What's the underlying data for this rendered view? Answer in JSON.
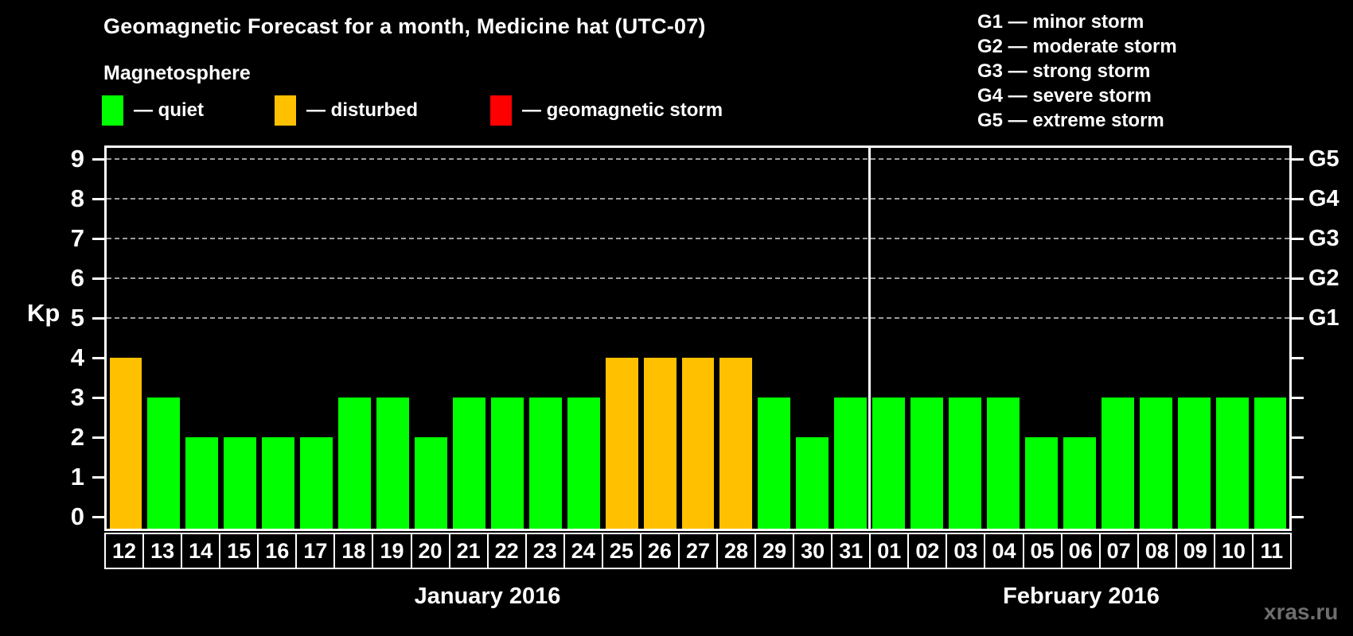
{
  "title": "Geomagnetic Forecast for a month, Medicine hat (UTC-07)",
  "subtitle": "Magnetosphere",
  "legend": {
    "quiet": {
      "label": "— quiet",
      "color": "#00ff00"
    },
    "disturbed": {
      "label": "— disturbed",
      "color": "#ffc000"
    },
    "storm": {
      "label": "— geomagnetic storm",
      "color": "#ff0000"
    }
  },
  "g_legend": [
    "G1 — minor storm",
    "G2 — moderate storm",
    "G3 — strong storm",
    "G4 — severe storm",
    "G5 — extreme storm"
  ],
  "watermark": "xras.ru",
  "chart_data": {
    "type": "bar",
    "title": "Geomagnetic Forecast for a month, Medicine hat (UTC-07)",
    "ylabel": "Kp",
    "ylim": [
      0,
      9
    ],
    "y_ticks": [
      0,
      1,
      2,
      3,
      4,
      5,
      6,
      7,
      8,
      9
    ],
    "right_axis_labels": [
      {
        "text": "G1",
        "kp": 5
      },
      {
        "text": "G2",
        "kp": 6
      },
      {
        "text": "G3",
        "kp": 7
      },
      {
        "text": "G4",
        "kp": 8
      },
      {
        "text": "G5",
        "kp": 9
      }
    ],
    "gridlines_at_kp": [
      5,
      6,
      7,
      8,
      9
    ],
    "grid": "dashed-horizontal-only-at-G-levels",
    "legend_position": "top",
    "months": [
      {
        "label": "January 2016",
        "start_index": 0,
        "num_days": 20
      },
      {
        "label": "February 2016",
        "start_index": 20,
        "num_days": 11
      }
    ],
    "categories": [
      "12",
      "13",
      "14",
      "15",
      "16",
      "17",
      "18",
      "19",
      "20",
      "21",
      "22",
      "23",
      "24",
      "25",
      "26",
      "27",
      "28",
      "29",
      "30",
      "31",
      "01",
      "02",
      "03",
      "04",
      "05",
      "06",
      "07",
      "08",
      "09",
      "10",
      "11"
    ],
    "values": [
      4,
      3,
      2,
      2,
      2,
      2,
      3,
      3,
      2,
      3,
      3,
      3,
      3,
      4,
      4,
      4,
      4,
      3,
      2,
      3,
      3,
      3,
      3,
      3,
      2,
      2,
      3,
      3,
      3,
      3,
      3
    ],
    "statuses": [
      "disturbed",
      "quiet",
      "quiet",
      "quiet",
      "quiet",
      "quiet",
      "quiet",
      "quiet",
      "quiet",
      "quiet",
      "quiet",
      "quiet",
      "quiet",
      "disturbed",
      "disturbed",
      "disturbed",
      "disturbed",
      "quiet",
      "quiet",
      "quiet",
      "quiet",
      "quiet",
      "quiet",
      "quiet",
      "quiet",
      "quiet",
      "quiet",
      "quiet",
      "quiet",
      "quiet",
      "quiet"
    ]
  }
}
